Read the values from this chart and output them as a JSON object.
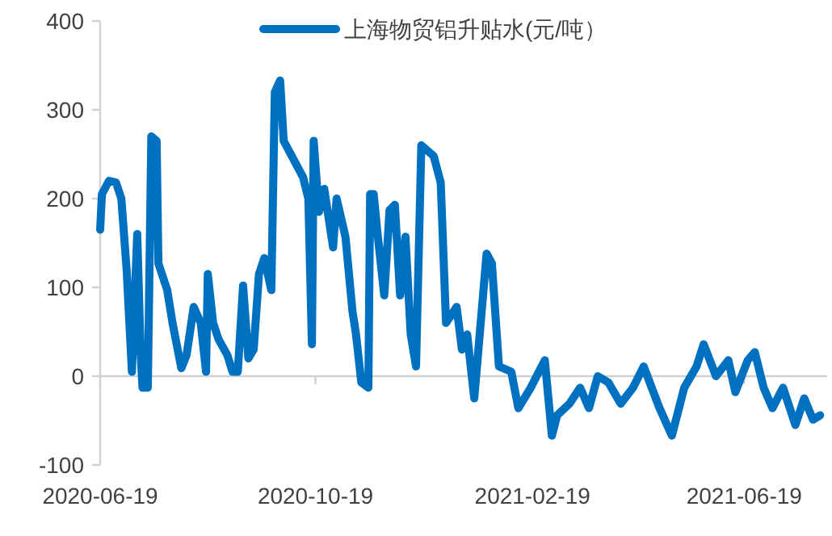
{
  "chart_data": {
    "type": "line",
    "x": [
      "2020-06-19",
      "2020-06-20",
      "2020-06-24",
      "2020-06-28",
      "2020-07-01",
      "2020-07-04",
      "2020-07-07",
      "2020-07-10",
      "2020-07-12",
      "2020-07-13",
      "2020-07-16",
      "2020-07-18",
      "2020-07-21",
      "2020-07-22",
      "2020-07-27",
      "2020-07-30",
      "2020-08-04",
      "2020-08-07",
      "2020-08-11",
      "2020-08-15",
      "2020-08-18",
      "2020-08-19",
      "2020-08-22",
      "2020-08-25",
      "2020-08-30",
      "2020-09-02",
      "2020-09-05",
      "2020-09-08",
      "2020-09-11",
      "2020-09-14",
      "2020-09-17",
      "2020-09-20",
      "2020-09-24",
      "2020-09-26",
      "2020-09-29",
      "2020-10-01",
      "2020-10-12",
      "2020-10-15",
      "2020-10-17",
      "2020-10-18",
      "2020-10-21",
      "2020-10-24",
      "2020-10-29",
      "2020-10-31",
      "2020-11-05",
      "2020-11-09",
      "2020-11-11",
      "2020-11-14",
      "2020-11-18",
      "2020-11-19",
      "2020-11-21",
      "2020-11-23",
      "2020-11-27",
      "2020-11-30",
      "2020-12-03",
      "2020-12-06",
      "2020-12-09",
      "2020-12-12",
      "2020-12-15",
      "2020-12-18",
      "2020-12-25",
      "2020-12-29",
      "2021-01-01",
      "2021-01-07",
      "2021-01-10",
      "2021-01-13",
      "2021-01-17",
      "2021-01-24",
      "2021-01-27",
      "2021-01-31",
      "2021-02-07",
      "2021-02-11",
      "2021-02-18",
      "2021-02-26",
      "2021-03-02",
      "2021-03-05",
      "2021-03-12",
      "2021-03-18",
      "2021-03-23",
      "2021-03-28",
      "2021-04-03",
      "2021-04-10",
      "2021-04-17",
      "2021-04-23",
      "2021-05-02",
      "2021-05-09",
      "2021-05-16",
      "2021-05-23",
      "2021-05-27",
      "2021-06-03",
      "2021-06-10",
      "2021-06-14",
      "2021-06-21",
      "2021-06-25",
      "2021-06-30",
      "2021-07-05",
      "2021-07-11",
      "2021-07-18",
      "2021-07-23",
      "2021-07-28",
      "2021-08-01"
    ],
    "series": [
      {
        "name": "上海物贸铝升贴水(元/吨）",
        "color": "#0070c0",
        "values": [
          165,
          205,
          220,
          218,
          200,
          120,
          5,
          160,
          24,
          -13,
          -13,
          270,
          265,
          127,
          97,
          60,
          9,
          24,
          78,
          60,
          5,
          115,
          60,
          42,
          24,
          5,
          5,
          102,
          20,
          30,
          115,
          133,
          97,
          320,
          333,
          265,
          224,
          200,
          36,
          265,
          185,
          211,
          145,
          200,
          157,
          73,
          47,
          -7,
          -13,
          205,
          205,
          164,
          91,
          187,
          193,
          91,
          157,
          47,
          11,
          260,
          248,
          218,
          60,
          78,
          30,
          47,
          -25,
          138,
          127,
          11,
          5,
          -36,
          -13,
          18,
          -67,
          -44,
          -31,
          -13,
          -36,
          0,
          -7,
          -31,
          -13,
          11,
          -36,
          -67,
          -13,
          11,
          36,
          0,
          18,
          -18,
          18,
          27,
          -13,
          -36,
          -13,
          -55,
          -25,
          -49,
          -44
        ]
      }
    ],
    "xlim": [
      "2020-06-19",
      "2021-08-05"
    ],
    "xticks": [
      "2020-06-19",
      "2020-10-19",
      "2021-02-19",
      "2021-06-19"
    ],
    "ylim": [
      -100,
      400
    ],
    "yticks": [
      -100,
      0,
      100,
      200,
      300,
      400
    ],
    "legend": "top",
    "marker": "none",
    "line_style": "solid"
  }
}
